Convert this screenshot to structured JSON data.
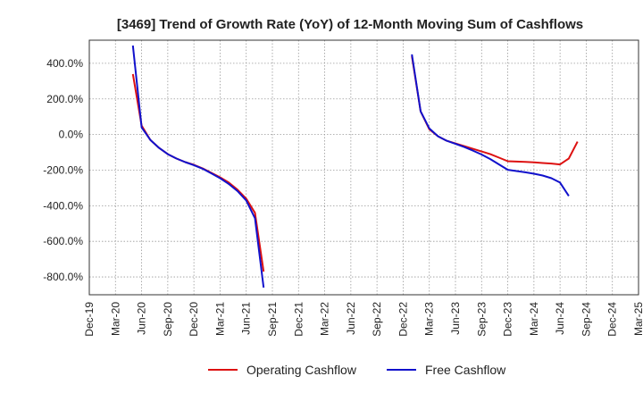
{
  "chart_data": {
    "type": "line",
    "title": "[3469]  Trend of Growth Rate (YoY) of 12-Month Moving Sum of Cashflows",
    "xlabel": "",
    "ylabel": "",
    "ylim": [
      -900,
      530
    ],
    "y_ticks": [
      400,
      200,
      0,
      -200,
      -400,
      -600,
      -800
    ],
    "y_tick_labels": [
      "400.0%",
      "200.0%",
      "0.0%",
      "-200.0%",
      "-400.0%",
      "-600.0%",
      "-800.0%"
    ],
    "x_tick_labels": [
      "Dec-19",
      "Mar-20",
      "Jun-20",
      "Sep-20",
      "Dec-20",
      "Mar-21",
      "Jun-21",
      "Sep-21",
      "Dec-21",
      "Mar-22",
      "Jun-22",
      "Sep-22",
      "Dec-22",
      "Mar-23",
      "Jun-23",
      "Sep-23",
      "Dec-23",
      "Mar-24",
      "Jun-24",
      "Sep-24",
      "Dec-24",
      "Mar-25"
    ],
    "grid": true,
    "legend_position": "bottom",
    "series": [
      {
        "name": "Operating Cashflow",
        "color": "#dd1111",
        "segments": [
          [
            {
              "x": "May-20",
              "y": 340
            },
            {
              "x": "Jun-20",
              "y": 50
            },
            {
              "x": "Jul-20",
              "y": -30
            },
            {
              "x": "Aug-20",
              "y": -75
            },
            {
              "x": "Sep-20",
              "y": -110
            },
            {
              "x": "Oct-20",
              "y": -135
            },
            {
              "x": "Nov-20",
              "y": -155
            },
            {
              "x": "Dec-20",
              "y": -170
            },
            {
              "x": "Jan-21",
              "y": -190
            },
            {
              "x": "Feb-21",
              "y": -215
            },
            {
              "x": "Mar-21",
              "y": -240
            },
            {
              "x": "Apr-21",
              "y": -270
            },
            {
              "x": "May-21",
              "y": -310
            },
            {
              "x": "Jun-21",
              "y": -360
            },
            {
              "x": "Jul-21",
              "y": -440
            },
            {
              "x": "Aug-21",
              "y": -770
            }
          ],
          [
            {
              "x": "Jan-23",
              "y": 440
            },
            {
              "x": "Feb-23",
              "y": 130
            },
            {
              "x": "Mar-23",
              "y": 30
            },
            {
              "x": "Apr-23",
              "y": -10
            },
            {
              "x": "May-23",
              "y": -35
            },
            {
              "x": "Jun-23",
              "y": -50
            },
            {
              "x": "Jul-23",
              "y": -65
            },
            {
              "x": "Aug-23",
              "y": -80
            },
            {
              "x": "Sep-23",
              "y": -95
            },
            {
              "x": "Oct-23",
              "y": -110
            },
            {
              "x": "Nov-23",
              "y": -130
            },
            {
              "x": "Dec-23",
              "y": -150
            },
            {
              "x": "Jan-24",
              "y": -152
            },
            {
              "x": "Feb-24",
              "y": -154
            },
            {
              "x": "Mar-24",
              "y": -156
            },
            {
              "x": "Apr-24",
              "y": -160
            },
            {
              "x": "May-24",
              "y": -163
            },
            {
              "x": "Jun-24",
              "y": -168
            },
            {
              "x": "Jul-24",
              "y": -135
            },
            {
              "x": "Aug-24",
              "y": -40
            }
          ]
        ]
      },
      {
        "name": "Free Cashflow",
        "color": "#1111cc",
        "segments": [
          [
            {
              "x": "May-20",
              "y": 500
            },
            {
              "x": "Jun-20",
              "y": 40
            },
            {
              "x": "Jul-20",
              "y": -30
            },
            {
              "x": "Aug-20",
              "y": -75
            },
            {
              "x": "Sep-20",
              "y": -110
            },
            {
              "x": "Oct-20",
              "y": -135
            },
            {
              "x": "Nov-20",
              "y": -155
            },
            {
              "x": "Dec-20",
              "y": -172
            },
            {
              "x": "Jan-21",
              "y": -192
            },
            {
              "x": "Feb-21",
              "y": -218
            },
            {
              "x": "Mar-21",
              "y": -245
            },
            {
              "x": "Apr-21",
              "y": -278
            },
            {
              "x": "May-21",
              "y": -318
            },
            {
              "x": "Jun-21",
              "y": -370
            },
            {
              "x": "Jul-21",
              "y": -470
            },
            {
              "x": "Aug-21",
              "y": -860
            }
          ],
          [
            {
              "x": "Jan-23",
              "y": 450
            },
            {
              "x": "Feb-23",
              "y": 130
            },
            {
              "x": "Mar-23",
              "y": 35
            },
            {
              "x": "Apr-23",
              "y": -10
            },
            {
              "x": "May-23",
              "y": -35
            },
            {
              "x": "Jun-23",
              "y": -52
            },
            {
              "x": "Jul-23",
              "y": -70
            },
            {
              "x": "Aug-23",
              "y": -90
            },
            {
              "x": "Sep-23",
              "y": -112
            },
            {
              "x": "Oct-23",
              "y": -138
            },
            {
              "x": "Nov-23",
              "y": -168
            },
            {
              "x": "Dec-23",
              "y": -198
            },
            {
              "x": "Jan-24",
              "y": -205
            },
            {
              "x": "Feb-24",
              "y": -212
            },
            {
              "x": "Mar-24",
              "y": -220
            },
            {
              "x": "Apr-24",
              "y": -230
            },
            {
              "x": "May-24",
              "y": -245
            },
            {
              "x": "Jun-24",
              "y": -270
            },
            {
              "x": "Jul-24",
              "y": -345
            }
          ]
        ]
      }
    ]
  }
}
